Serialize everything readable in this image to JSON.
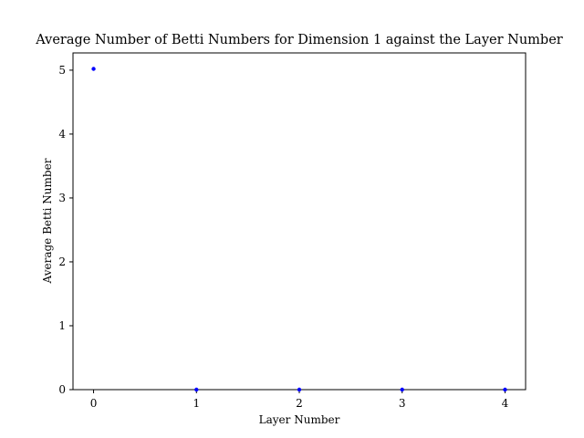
{
  "chart_data": {
    "type": "scatter",
    "title": "Average Number of Betti Numbers for Dimension 1 against the Layer Number",
    "xlabel": "Layer Number",
    "ylabel": "Average Betti Number",
    "x": [
      0,
      1,
      2,
      3,
      4
    ],
    "series": [
      {
        "values": [
          5.02,
          0,
          0,
          0,
          0
        ],
        "color": "#0000ff"
      }
    ],
    "xlim": [
      -0.2,
      4.2
    ],
    "ylim": [
      0,
      5.27
    ],
    "xticks": [
      0,
      1,
      2,
      3,
      4
    ],
    "yticks": [
      0,
      1,
      2,
      3,
      4,
      5
    ],
    "grid": false,
    "legend": "none"
  }
}
